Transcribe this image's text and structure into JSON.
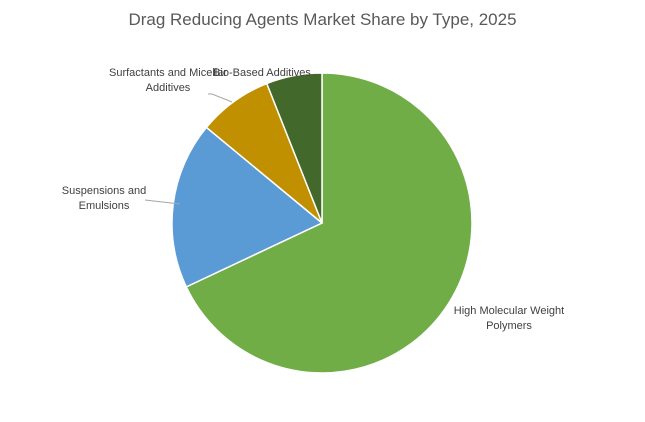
{
  "chart_data": {
    "type": "pie",
    "title": "Drag Reducing Agents Market Share by Type, 2025",
    "slices": [
      {
        "label": "High Molecular Weight Polymers",
        "value": 68,
        "color": "#70AD47"
      },
      {
        "label": "Suspensions and Emulsions",
        "value": 18,
        "color": "#5B9BD5"
      },
      {
        "label": "Surfactants and Micellar Additives",
        "value": 8,
        "color": "#C09000"
      },
      {
        "label": "Bio-Based Additives",
        "value": 6,
        "color": "#43682B"
      }
    ],
    "legend": "none",
    "start_angle_deg": 0,
    "direction": "clockwise"
  }
}
